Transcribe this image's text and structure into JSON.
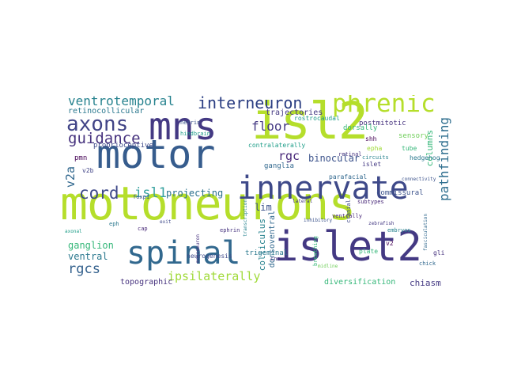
{
  "palette": {
    "lime": "#b5de2b",
    "yellowgreen": "#a0da39",
    "indigo": "#443983",
    "navy": "#31688e",
    "teal": "#26828e",
    "steel": "#3e4989",
    "dark": "#482878",
    "green": "#35b779",
    "purple": "#46327e",
    "sea": "#1f9e89",
    "blue": "#365c8d"
  },
  "words": [
    {
      "text": "motoneurons"
    },
    {
      "text": "motor"
    },
    {
      "text": "mns"
    },
    {
      "text": "isl2"
    },
    {
      "text": "islet2"
    },
    {
      "text": "spinal"
    },
    {
      "text": "innervate"
    },
    {
      "text": "phrenic"
    },
    {
      "text": "interneuron"
    },
    {
      "text": "axons"
    },
    {
      "text": "ventrotemporal"
    },
    {
      "text": "guidance"
    },
    {
      "text": "cord"
    },
    {
      "text": "isl1"
    },
    {
      "text": "floor"
    },
    {
      "text": "pathfinding"
    },
    {
      "text": "rgcs"
    },
    {
      "text": "ipsilaterally"
    },
    {
      "text": "v2a"
    },
    {
      "text": "binocular"
    },
    {
      "text": "projecting"
    },
    {
      "text": "rgc"
    },
    {
      "text": "lim"
    },
    {
      "text": "ganglion"
    },
    {
      "text": "ventral"
    },
    {
      "text": "topographic"
    },
    {
      "text": "trajectories"
    },
    {
      "text": "retinocollicular"
    },
    {
      "text": "proprioceptive"
    },
    {
      "text": "pmn"
    },
    {
      "text": "v2b"
    },
    {
      "text": "colliculus"
    },
    {
      "text": "dorsoventral"
    },
    {
      "text": "diversification"
    },
    {
      "text": "chiasm"
    },
    {
      "text": "trigeminal"
    },
    {
      "text": "neuron"
    },
    {
      "text": "columns"
    },
    {
      "text": "commissural"
    },
    {
      "text": "postmitotic"
    },
    {
      "text": "rostrocaudal"
    },
    {
      "text": "sensory"
    },
    {
      "text": "contralaterally"
    },
    {
      "text": "dorsally"
    },
    {
      "text": "ganglia"
    },
    {
      "text": "islet"
    },
    {
      "text": "shh"
    },
    {
      "text": "epha"
    },
    {
      "text": "tube"
    },
    {
      "text": "netrin"
    },
    {
      "text": "ephrin"
    },
    {
      "text": "neurogenesis"
    },
    {
      "text": "hindbrain"
    },
    {
      "text": "parafacial"
    },
    {
      "text": "retinal"
    },
    {
      "text": "circuits"
    },
    {
      "text": "hedgehog"
    },
    {
      "text": "ventrally"
    },
    {
      "text": "foxp1"
    },
    {
      "text": "v2"
    },
    {
      "text": "gli"
    },
    {
      "text": "plate"
    },
    {
      "text": "chick"
    },
    {
      "text": "subtypes"
    },
    {
      "text": "cns"
    },
    {
      "text": "embryos"
    },
    {
      "text": "cranial"
    },
    {
      "text": "breathing"
    },
    {
      "text": "connectivity"
    },
    {
      "text": "zebrafish"
    },
    {
      "text": "eph"
    },
    {
      "text": "cap"
    },
    {
      "text": "exit"
    },
    {
      "text": "axonal"
    },
    {
      "text": "midline"
    },
    {
      "text": "fasciculation"
    },
    {
      "text": "motoneuron"
    },
    {
      "text": "inhibitory"
    },
    {
      "text": "lateral"
    },
    {
      "text": "transcription"
    }
  ]
}
